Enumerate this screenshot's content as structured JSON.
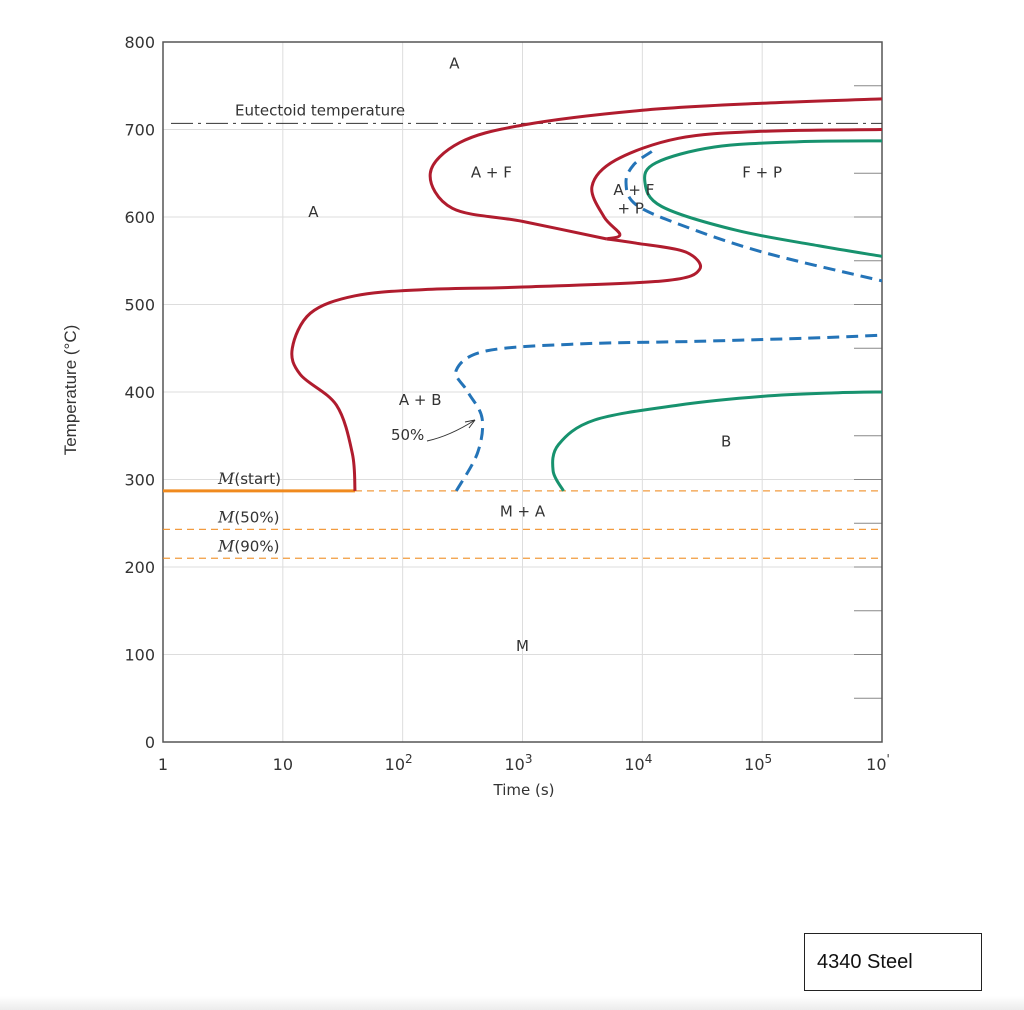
{
  "chart_data": {
    "type": "line",
    "title": "",
    "xlabel": "Time (s)",
    "ylabel": "Temperature (°C)",
    "xscale": "log",
    "xlim": [
      1,
      1000000
    ],
    "ylim": [
      0,
      800
    ],
    "x_ticks": [
      {
        "value": 1,
        "base": "1",
        "exp": ""
      },
      {
        "value": 10,
        "base": "10",
        "exp": ""
      },
      {
        "value": 100,
        "base": "10",
        "exp": "2"
      },
      {
        "value": 1000,
        "base": "10",
        "exp": "3"
      },
      {
        "value": 10000,
        "base": "10",
        "exp": "4"
      },
      {
        "value": 100000,
        "base": "10",
        "exp": "5"
      },
      {
        "value": 1000000,
        "base": "10",
        "exp": "'"
      }
    ],
    "y_ticks": [
      "0",
      "100",
      "200",
      "300",
      "400",
      "500",
      "600",
      "700",
      "800"
    ],
    "grid": true,
    "colors": {
      "start_curves": "#b01c2e",
      "finish_curves": "#17926e",
      "fifty_percent": "#2474b8",
      "martensite": "#f08a1e",
      "eutectoid": "#333333"
    },
    "eutectoid": {
      "label": "Eutectoid temperature",
      "temp": 707
    },
    "martensite_lines": [
      {
        "name": "M",
        "suffix": "(start)",
        "temp": 287
      },
      {
        "name": "M",
        "suffix": "(50%)",
        "temp": 243
      },
      {
        "name": "M",
        "suffix": "(90%)",
        "temp": 210
      }
    ],
    "series": [
      {
        "role": "start-lower",
        "points": [
          [
            40,
            287
          ],
          [
            38,
            330
          ],
          [
            28,
            385
          ],
          [
            14,
            420
          ],
          [
            12,
            450
          ],
          [
            17,
            490
          ],
          [
            40,
            510
          ],
          [
            150,
            517
          ],
          [
            1000,
            520
          ],
          [
            15000,
            527
          ],
          [
            30000,
            540
          ],
          [
            23000,
            560
          ],
          [
            9000,
            570
          ],
          [
            5000,
            575
          ]
        ]
      },
      {
        "role": "start-upper",
        "points": [
          [
            1000000,
            735
          ],
          [
            100000,
            730
          ],
          [
            10000,
            722
          ],
          [
            1000,
            705
          ],
          [
            300,
            685
          ],
          [
            170,
            650
          ],
          [
            260,
            610
          ],
          [
            1000,
            595
          ],
          [
            5000,
            575
          ]
        ]
      },
      {
        "role": "start-pearlite",
        "points": [
          [
            1000000,
            700
          ],
          [
            100000,
            698
          ],
          [
            20000,
            690
          ],
          [
            6000,
            665
          ],
          [
            3800,
            635
          ],
          [
            4800,
            600
          ],
          [
            6500,
            580
          ],
          [
            5000,
            575
          ]
        ]
      },
      {
        "role": "fifty-percent-pearlite",
        "points": [
          [
            12000,
            675
          ],
          [
            8500,
            660
          ],
          [
            7300,
            640
          ],
          [
            8700,
            615
          ],
          [
            20000,
            592
          ],
          [
            100000,
            560
          ],
          [
            1000000,
            527
          ]
        ]
      },
      {
        "role": "finish-pearlite",
        "points": [
          [
            1000000,
            687
          ],
          [
            200000,
            686
          ],
          [
            40000,
            680
          ],
          [
            13000,
            662
          ],
          [
            10500,
            640
          ],
          [
            14500,
            612
          ],
          [
            60000,
            585
          ],
          [
            300000,
            567
          ],
          [
            1000000,
            555
          ]
        ]
      },
      {
        "role": "fifty-percent-bainite",
        "points": [
          [
            280,
            287
          ],
          [
            420,
            330
          ],
          [
            460,
            370
          ],
          [
            350,
            400
          ],
          [
            280,
            425
          ],
          [
            500,
            447
          ],
          [
            3000,
            455
          ],
          [
            30000,
            458
          ],
          [
            300000,
            462
          ],
          [
            1000000,
            465
          ]
        ]
      },
      {
        "role": "finish-bainite",
        "points": [
          [
            2200,
            287
          ],
          [
            1800,
            310
          ],
          [
            2000,
            340
          ],
          [
            4000,
            368
          ],
          [
            20000,
            385
          ],
          [
            100000,
            395
          ],
          [
            400000,
            399
          ],
          [
            1000000,
            400
          ]
        ]
      }
    ],
    "annotations": [
      {
        "text": "A",
        "x": 270,
        "y": 770
      },
      {
        "text": "A",
        "x": 18,
        "y": 600
      },
      {
        "text": "A + F",
        "x": 550,
        "y": 645
      },
      {
        "text": "A + F",
        "x": 8500,
        "y": 625
      },
      {
        "text": "+ P",
        "x": 8000,
        "y": 604
      },
      {
        "text": "F + P",
        "x": 100000,
        "y": 645
      },
      {
        "text": "A + B",
        "x": 140,
        "y": 385
      },
      {
        "text": "50%",
        "x": 110,
        "y": 345
      },
      {
        "text": "B",
        "x": 50000,
        "y": 338
      },
      {
        "text": "M + A",
        "x": 1000,
        "y": 258
      },
      {
        "text": "M",
        "x": 1000,
        "y": 104
      }
    ]
  },
  "caption": "4340 Steel"
}
